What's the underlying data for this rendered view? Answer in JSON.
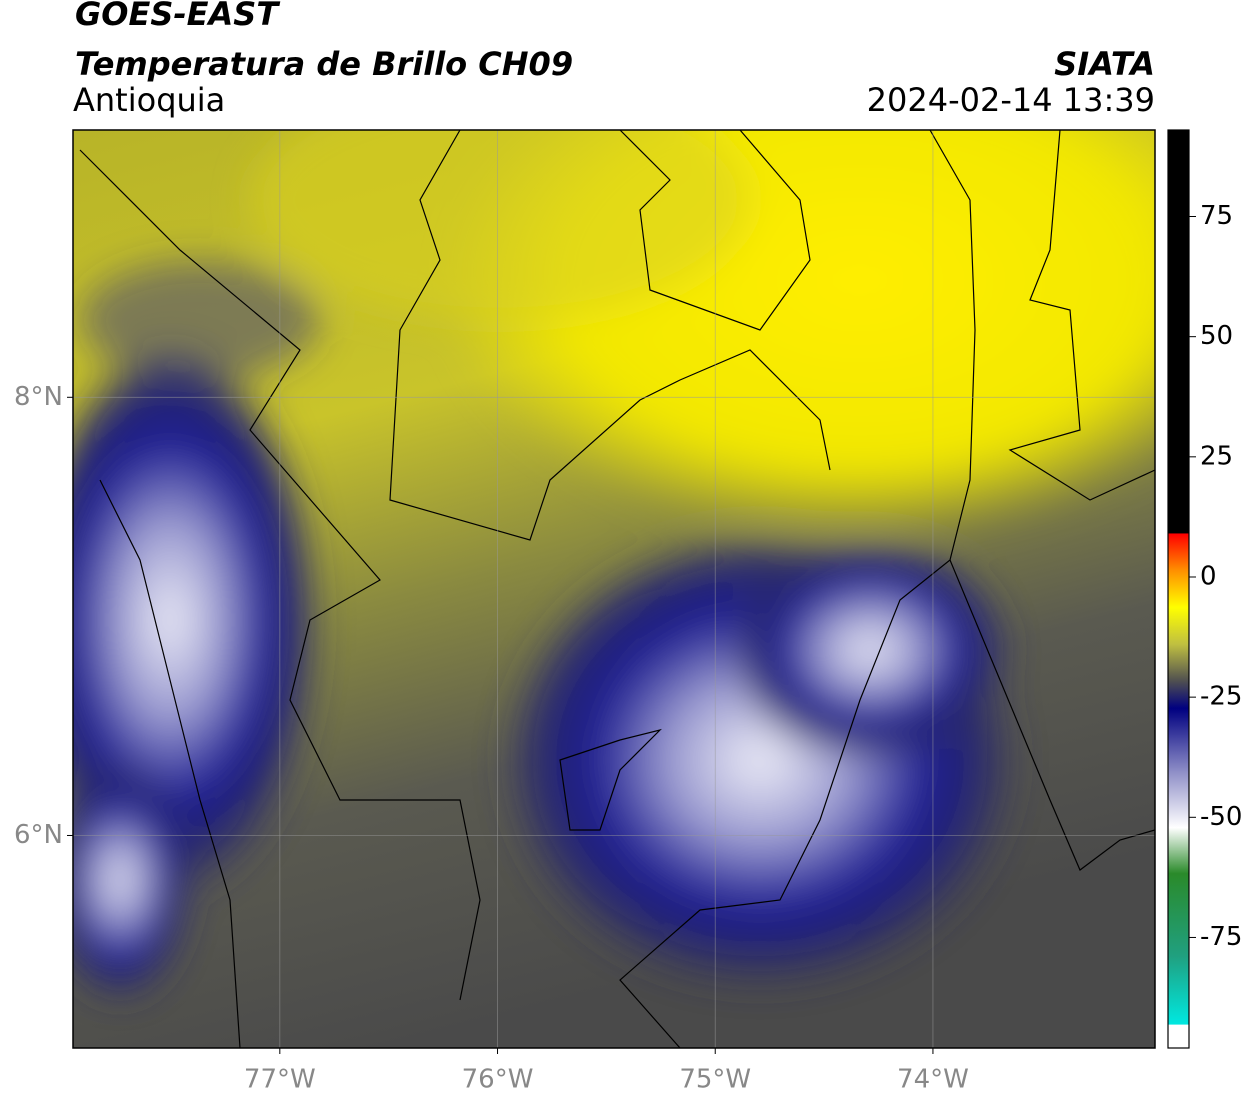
{
  "header": {
    "title": "GOES-EAST",
    "subtitle": "Temperatura de Brillo CH09",
    "region": "Antioquia",
    "source": "SIATA",
    "datetime": "2024-02-14 13:39"
  },
  "map": {
    "xlim": [
      -77.95,
      -72.98
    ],
    "ylim": [
      5.03,
      9.22
    ],
    "xticks": [
      {
        "value": -77,
        "label": "77°W"
      },
      {
        "value": -76,
        "label": "76°W"
      },
      {
        "value": -75,
        "label": "75°W"
      },
      {
        "value": -74,
        "label": "74°W"
      }
    ],
    "yticks": [
      {
        "value": 8,
        "label": "8°N"
      },
      {
        "value": 6,
        "label": "6°N"
      }
    ],
    "grid": true
  },
  "colorbar": {
    "lim": [
      -98,
      93
    ],
    "ticks": [
      75,
      50,
      25,
      0,
      -25,
      -50,
      -75
    ]
  }
}
